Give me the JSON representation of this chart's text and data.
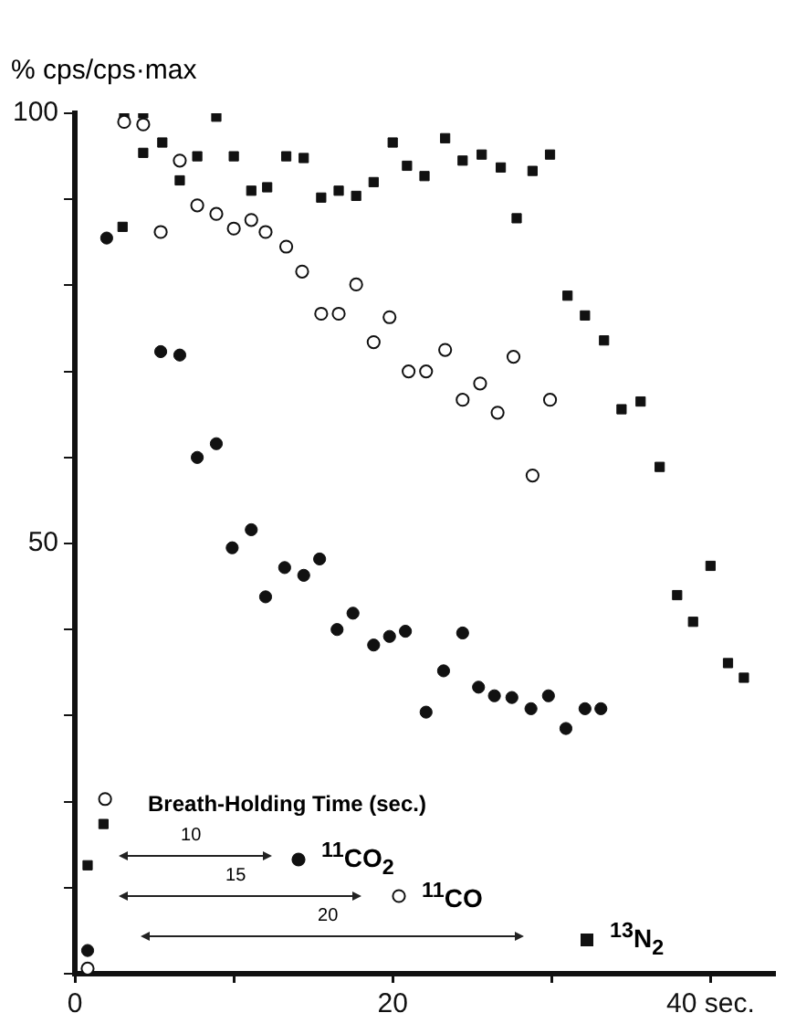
{
  "chart_data": {
    "type": "scatter",
    "ylabel": "% cps/cps·max",
    "xlim": [
      0,
      44
    ],
    "xticks": [
      0,
      {
        "value": 10,
        "label": null
      },
      {
        "value": 20,
        "label": "20"
      },
      {
        "value": 30,
        "label": null
      },
      {
        "value": 40,
        "label": "40 sec."
      }
    ],
    "ylim": [
      0,
      100
    ],
    "yticks": [
      {
        "value": 0,
        "label": null
      },
      {
        "value": 10,
        "label": null
      },
      {
        "value": 20,
        "label": null
      },
      {
        "value": 30,
        "label": null
      },
      {
        "value": 40,
        "label": null
      },
      50,
      {
        "value": 60,
        "label": null
      },
      {
        "value": 70,
        "label": null
      },
      {
        "value": 80,
        "label": null
      },
      {
        "value": 90,
        "label": null
      },
      100
    ],
    "grid": false,
    "legend": "bottom",
    "annotations": [
      "Breath-Holding Time (sec.)",
      "10",
      "15",
      "20"
    ],
    "series": [
      {
        "name": "$^{11}$CO$_{2}$",
        "color": "#111111",
        "marker": "circle",
        "x": [
          0.8,
          2.0,
          5.4,
          6.6,
          7.7,
          8.9,
          9.9,
          11.1,
          12.0,
          13.2,
          14.4,
          15.4,
          16.5,
          17.5,
          18.8,
          19.8,
          20.8,
          22.1,
          23.2,
          24.4,
          25.4,
          26.4,
          27.5,
          28.7,
          29.8,
          30.9,
          32.1,
          33.1
        ],
        "values": [
          2.7,
          85.5,
          72.3,
          71.9,
          60.0,
          61.6,
          49.5,
          51.6,
          43.8,
          47.2,
          46.3,
          48.2,
          40.0,
          41.9,
          38.2,
          39.2,
          39.8,
          30.4,
          35.2,
          39.6,
          33.3,
          32.3,
          32.1,
          30.8,
          32.3,
          28.5,
          30.8,
          30.8
        ]
      },
      {
        "name": "$^{11}$CO",
        "color": "#111111",
        "marker": "circle-open",
        "x": [
          0.8,
          1.9,
          3.1,
          4.3,
          5.4,
          6.6,
          7.7,
          8.9,
          10.0,
          11.1,
          12.0,
          13.3,
          14.3,
          15.5,
          16.6,
          17.7,
          18.8,
          19.8,
          21.0,
          22.1,
          23.3,
          24.4,
          25.5,
          26.6,
          27.6,
          28.8,
          29.9
        ],
        "values": [
          0.6,
          20.3,
          99.0,
          98.7,
          86.2,
          94.5,
          89.3,
          88.3,
          86.6,
          87.6,
          86.2,
          84.5,
          81.6,
          76.7,
          76.7,
          80.1,
          73.4,
          76.3,
          70.0,
          70.0,
          72.5,
          66.7,
          68.6,
          65.2,
          71.7,
          57.9,
          66.7
        ]
      },
      {
        "name": "$^{13}$N$_{2}$",
        "color": "#111111",
        "marker": "square",
        "x": [
          0.8,
          1.8,
          3.0,
          3.1,
          4.3,
          4.3,
          5.5,
          6.6,
          7.7,
          8.9,
          10.0,
          11.1,
          12.1,
          13.3,
          14.4,
          15.5,
          16.6,
          17.7,
          18.8,
          20.0,
          20.9,
          22.0,
          23.3,
          24.4,
          25.6,
          26.8,
          27.8,
          28.8,
          29.9,
          31.0,
          32.1,
          33.3,
          34.4,
          35.6,
          36.8,
          37.9,
          38.9,
          40.0,
          41.1,
          42.1
        ],
        "values": [
          12.6,
          17.4,
          86.8,
          100,
          100,
          95.4,
          96.6,
          92.2,
          95.0,
          99.6,
          95.0,
          91.0,
          91.4,
          95.0,
          94.8,
          90.2,
          91.0,
          90.4,
          92.0,
          96.6,
          93.9,
          92.7,
          97.1,
          94.5,
          95.2,
          93.7,
          87.8,
          93.3,
          95.2,
          78.8,
          76.5,
          73.6,
          65.6,
          66.5,
          58.9,
          44.0,
          40.9,
          47.4,
          36.1,
          34.4
        ]
      }
    ]
  }
}
